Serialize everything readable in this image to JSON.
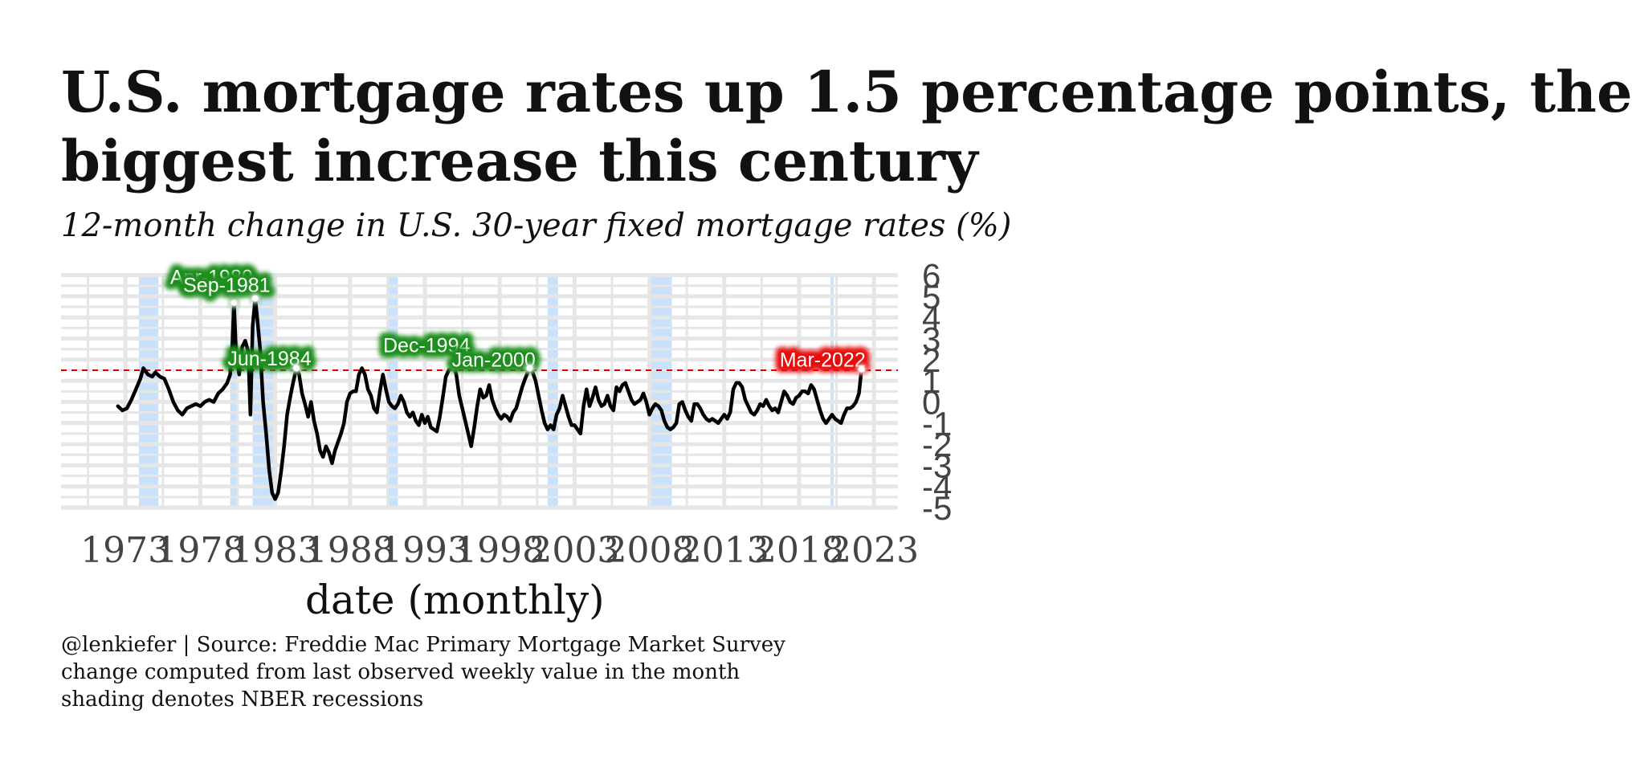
{
  "title_line1": "U.S. mortgage rates up 1.5 percentage points, the",
  "title_line2": "biggest increase this century",
  "subtitle": "12-month change in U.S. 30-year fixed mortgage rates (%)",
  "caption": [
    "@lenkiefer | Source: Freddie Mac Primary Mortgage Market Survey",
    "change computed from last observed weekly value in the month",
    "shading denotes NBER recessions"
  ],
  "colors": {
    "line": "#000000",
    "recession": "#bfdcf9",
    "grid": "#e6e6e6",
    "reference_line": "#e00000",
    "label_green": "#1a8f1a",
    "label_red": "#e81010"
  },
  "chart_data": {
    "type": "line",
    "title": "U.S. mortgage rates up 1.5 percentage points, the biggest increase this century",
    "xlabel": "date (monthly)",
    "ylabel": "",
    "x_ticks": [
      "1973",
      "1978",
      "1983",
      "1988",
      "1993",
      "1998",
      "2003",
      "2008",
      "2013",
      "2018",
      "2023"
    ],
    "y_ticks": [
      "6",
      "5",
      "4",
      "3",
      "2",
      "1",
      "0",
      "-1",
      "-2",
      "-3",
      "-4",
      "-5"
    ],
    "xlim": [
      1968.7,
      2024.6
    ],
    "ylim": [
      -5.0,
      6.1
    ],
    "grid": true,
    "reference_line": {
      "y": 1.5,
      "style": "dashed",
      "color": "#e00000"
    },
    "recessions": [
      [
        1973.9,
        1975.2
      ],
      [
        1980.0,
        1980.5
      ],
      [
        1981.5,
        1982.9
      ],
      [
        1990.5,
        1991.2
      ],
      [
        2001.2,
        2001.9
      ],
      [
        2007.9,
        2009.5
      ],
      [
        2020.1,
        2020.3
      ]
    ],
    "annotations": [
      {
        "label": "Apr-1980",
        "x": 1980.25,
        "y": 4.7,
        "color": "green"
      },
      {
        "label": "Sep-1981",
        "x": 1981.67,
        "y": 4.9,
        "color": "green"
      },
      {
        "label": "Jun-1984",
        "x": 1984.42,
        "y": 1.6,
        "color": "green"
      },
      {
        "label": "Dec-1994",
        "x": 1994.92,
        "y": 1.7,
        "color": "green"
      },
      {
        "label": "Jan-2000",
        "x": 2000.0,
        "y": 1.6,
        "color": "green"
      },
      {
        "label": "Mar-2022",
        "x": 2022.17,
        "y": 1.55,
        "color": "red"
      }
    ],
    "series": [
      {
        "points": [
          [
            1972.5,
            -0.2
          ],
          [
            1972.8,
            -0.4
          ],
          [
            1973.1,
            -0.3
          ],
          [
            1973.4,
            0.1
          ],
          [
            1973.7,
            0.6
          ],
          [
            1974.0,
            1.1
          ],
          [
            1974.2,
            1.6
          ],
          [
            1974.5,
            1.3
          ],
          [
            1974.8,
            1.2
          ],
          [
            1975.0,
            1.4
          ],
          [
            1975.3,
            1.2
          ],
          [
            1975.6,
            1.1
          ],
          [
            1975.9,
            0.6
          ],
          [
            1976.2,
            0.0
          ],
          [
            1976.5,
            -0.4
          ],
          [
            1976.8,
            -0.6
          ],
          [
            1977.1,
            -0.3
          ],
          [
            1977.4,
            -0.2
          ],
          [
            1977.7,
            -0.1
          ],
          [
            1978.0,
            -0.2
          ],
          [
            1978.3,
            0.0
          ],
          [
            1978.6,
            0.1
          ],
          [
            1978.9,
            0.0
          ],
          [
            1979.2,
            0.4
          ],
          [
            1979.5,
            0.6
          ],
          [
            1979.8,
            0.9
          ],
          [
            1980.0,
            1.3
          ],
          [
            1980.15,
            2.8
          ],
          [
            1980.25,
            4.7
          ],
          [
            1980.4,
            2.2
          ],
          [
            1980.6,
            1.3
          ],
          [
            1980.8,
            2.6
          ],
          [
            1981.0,
            2.9
          ],
          [
            1981.2,
            2.4
          ],
          [
            1981.35,
            -0.6
          ],
          [
            1981.5,
            3.6
          ],
          [
            1981.67,
            4.9
          ],
          [
            1981.8,
            4.0
          ],
          [
            1982.0,
            2.5
          ],
          [
            1982.2,
            0.0
          ],
          [
            1982.4,
            -1.5
          ],
          [
            1982.6,
            -3.2
          ],
          [
            1982.8,
            -4.3
          ],
          [
            1983.0,
            -4.6
          ],
          [
            1983.2,
            -4.3
          ],
          [
            1983.4,
            -3.3
          ],
          [
            1983.6,
            -2.1
          ],
          [
            1983.8,
            -0.6
          ],
          [
            1984.0,
            0.2
          ],
          [
            1984.2,
            0.9
          ],
          [
            1984.42,
            1.6
          ],
          [
            1984.6,
            1.3
          ],
          [
            1984.8,
            0.4
          ],
          [
            1985.0,
            -0.1
          ],
          [
            1985.2,
            -0.7
          ],
          [
            1985.4,
            0.0
          ],
          [
            1985.6,
            -0.9
          ],
          [
            1985.8,
            -1.5
          ],
          [
            1986.0,
            -2.3
          ],
          [
            1986.2,
            -2.6
          ],
          [
            1986.4,
            -2.1
          ],
          [
            1986.6,
            -2.4
          ],
          [
            1986.8,
            -2.9
          ],
          [
            1987.0,
            -2.3
          ],
          [
            1987.2,
            -1.9
          ],
          [
            1987.4,
            -1.5
          ],
          [
            1987.6,
            -1.0
          ],
          [
            1987.8,
            0.0
          ],
          [
            1988.0,
            0.4
          ],
          [
            1988.2,
            0.5
          ],
          [
            1988.4,
            0.5
          ],
          [
            1988.6,
            1.3
          ],
          [
            1988.8,
            1.6
          ],
          [
            1989.0,
            1.3
          ],
          [
            1989.2,
            0.6
          ],
          [
            1989.4,
            0.3
          ],
          [
            1989.6,
            -0.3
          ],
          [
            1989.8,
            -0.5
          ],
          [
            1990.0,
            0.5
          ],
          [
            1990.2,
            1.3
          ],
          [
            1990.4,
            0.6
          ],
          [
            1990.6,
            0.0
          ],
          [
            1990.8,
            -0.2
          ],
          [
            1991.0,
            -0.3
          ],
          [
            1991.2,
            -0.1
          ],
          [
            1991.4,
            0.3
          ],
          [
            1991.6,
            0.0
          ],
          [
            1991.8,
            -0.5
          ],
          [
            1992.0,
            -0.7
          ],
          [
            1992.2,
            -0.5
          ],
          [
            1992.4,
            -0.9
          ],
          [
            1992.6,
            -1.1
          ],
          [
            1992.8,
            -0.6
          ],
          [
            1993.0,
            -1.0
          ],
          [
            1993.2,
            -0.7
          ],
          [
            1993.4,
            -1.2
          ],
          [
            1993.6,
            -1.3
          ],
          [
            1993.8,
            -1.4
          ],
          [
            1994.0,
            -0.7
          ],
          [
            1994.2,
            0.2
          ],
          [
            1994.4,
            1.2
          ],
          [
            1994.6,
            1.5
          ],
          [
            1994.92,
            1.7
          ],
          [
            1995.1,
            1.3
          ],
          [
            1995.3,
            0.3
          ],
          [
            1995.5,
            -0.3
          ],
          [
            1995.7,
            -0.9
          ],
          [
            1995.9,
            -1.5
          ],
          [
            1996.1,
            -2.1
          ],
          [
            1996.3,
            -1.2
          ],
          [
            1996.5,
            -0.2
          ],
          [
            1996.7,
            0.6
          ],
          [
            1996.9,
            0.2
          ],
          [
            1997.1,
            0.3
          ],
          [
            1997.3,
            0.8
          ],
          [
            1997.5,
            0.1
          ],
          [
            1997.7,
            -0.3
          ],
          [
            1997.9,
            -0.6
          ],
          [
            1998.1,
            -0.8
          ],
          [
            1998.3,
            -0.6
          ],
          [
            1998.5,
            -0.7
          ],
          [
            1998.7,
            -0.9
          ],
          [
            1998.9,
            -0.5
          ],
          [
            1999.1,
            -0.3
          ],
          [
            1999.3,
            0.2
          ],
          [
            1999.5,
            0.7
          ],
          [
            1999.7,
            1.1
          ],
          [
            2000.0,
            1.6
          ],
          [
            2000.2,
            1.4
          ],
          [
            2000.4,
            1.0
          ],
          [
            2000.6,
            0.3
          ],
          [
            2000.8,
            -0.4
          ],
          [
            2001.0,
            -1.0
          ],
          [
            2001.2,
            -1.3
          ],
          [
            2001.4,
            -1.1
          ],
          [
            2001.6,
            -1.3
          ],
          [
            2001.8,
            -0.6
          ],
          [
            2002.0,
            -0.3
          ],
          [
            2002.2,
            0.3
          ],
          [
            2002.4,
            -0.2
          ],
          [
            2002.6,
            -0.7
          ],
          [
            2002.8,
            -1.1
          ],
          [
            2003.0,
            -1.1
          ],
          [
            2003.2,
            -1.3
          ],
          [
            2003.4,
            -1.5
          ],
          [
            2003.6,
            -0.2
          ],
          [
            2003.8,
            0.6
          ],
          [
            2004.0,
            -0.2
          ],
          [
            2004.2,
            0.2
          ],
          [
            2004.4,
            0.7
          ],
          [
            2004.6,
            0.1
          ],
          [
            2004.8,
            -0.2
          ],
          [
            2005.0,
            -0.1
          ],
          [
            2005.2,
            0.3
          ],
          [
            2005.4,
            -0.2
          ],
          [
            2005.6,
            -0.4
          ],
          [
            2005.8,
            0.7
          ],
          [
            2006.0,
            0.5
          ],
          [
            2006.2,
            0.8
          ],
          [
            2006.4,
            0.9
          ],
          [
            2006.6,
            0.5
          ],
          [
            2006.8,
            0.1
          ],
          [
            2007.0,
            -0.1
          ],
          [
            2007.2,
            0.0
          ],
          [
            2007.4,
            0.1
          ],
          [
            2007.6,
            0.4
          ],
          [
            2007.8,
            0.0
          ],
          [
            2008.0,
            -0.6
          ],
          [
            2008.2,
            -0.3
          ],
          [
            2008.4,
            -0.1
          ],
          [
            2008.6,
            -0.2
          ],
          [
            2008.8,
            -0.4
          ],
          [
            2009.0,
            -0.9
          ],
          [
            2009.2,
            -1.2
          ],
          [
            2009.4,
            -1.3
          ],
          [
            2009.6,
            -1.2
          ],
          [
            2009.8,
            -1.0
          ],
          [
            2010.0,
            -0.1
          ],
          [
            2010.2,
            0.0
          ],
          [
            2010.4,
            -0.4
          ],
          [
            2010.6,
            -0.7
          ],
          [
            2010.8,
            -0.9
          ],
          [
            2011.0,
            -0.1
          ],
          [
            2011.2,
            -0.1
          ],
          [
            2011.4,
            -0.3
          ],
          [
            2011.6,
            -0.6
          ],
          [
            2011.8,
            -0.8
          ],
          [
            2012.0,
            -0.9
          ],
          [
            2012.2,
            -0.8
          ],
          [
            2012.4,
            -0.9
          ],
          [
            2012.6,
            -1.0
          ],
          [
            2012.8,
            -0.8
          ],
          [
            2013.0,
            -0.6
          ],
          [
            2013.2,
            -0.8
          ],
          [
            2013.4,
            -0.5
          ],
          [
            2013.6,
            0.6
          ],
          [
            2013.8,
            0.9
          ],
          [
            2014.0,
            0.9
          ],
          [
            2014.2,
            0.7
          ],
          [
            2014.4,
            0.1
          ],
          [
            2014.6,
            -0.2
          ],
          [
            2014.8,
            -0.5
          ],
          [
            2015.0,
            -0.6
          ],
          [
            2015.2,
            -0.4
          ],
          [
            2015.4,
            -0.1
          ],
          [
            2015.6,
            -0.2
          ],
          [
            2015.8,
            0.1
          ],
          [
            2016.0,
            -0.2
          ],
          [
            2016.2,
            -0.4
          ],
          [
            2016.4,
            -0.3
          ],
          [
            2016.6,
            -0.5
          ],
          [
            2016.8,
            0.0
          ],
          [
            2017.0,
            0.5
          ],
          [
            2017.2,
            0.3
          ],
          [
            2017.4,
            0.0
          ],
          [
            2017.6,
            -0.1
          ],
          [
            2017.8,
            0.2
          ],
          [
            2018.0,
            0.3
          ],
          [
            2018.2,
            0.5
          ],
          [
            2018.4,
            0.5
          ],
          [
            2018.6,
            0.4
          ],
          [
            2018.8,
            0.8
          ],
          [
            2019.0,
            0.6
          ],
          [
            2019.2,
            0.1
          ],
          [
            2019.4,
            -0.4
          ],
          [
            2019.6,
            -0.8
          ],
          [
            2019.8,
            -1.0
          ],
          [
            2020.0,
            -0.8
          ],
          [
            2020.2,
            -0.6
          ],
          [
            2020.4,
            -0.8
          ],
          [
            2020.6,
            -0.9
          ],
          [
            2020.8,
            -1.0
          ],
          [
            2021.0,
            -0.6
          ],
          [
            2021.2,
            -0.3
          ],
          [
            2021.4,
            -0.3
          ],
          [
            2021.6,
            -0.2
          ],
          [
            2021.8,
            0.0
          ],
          [
            2022.0,
            0.4
          ],
          [
            2022.17,
            1.55
          ]
        ]
      }
    ]
  }
}
